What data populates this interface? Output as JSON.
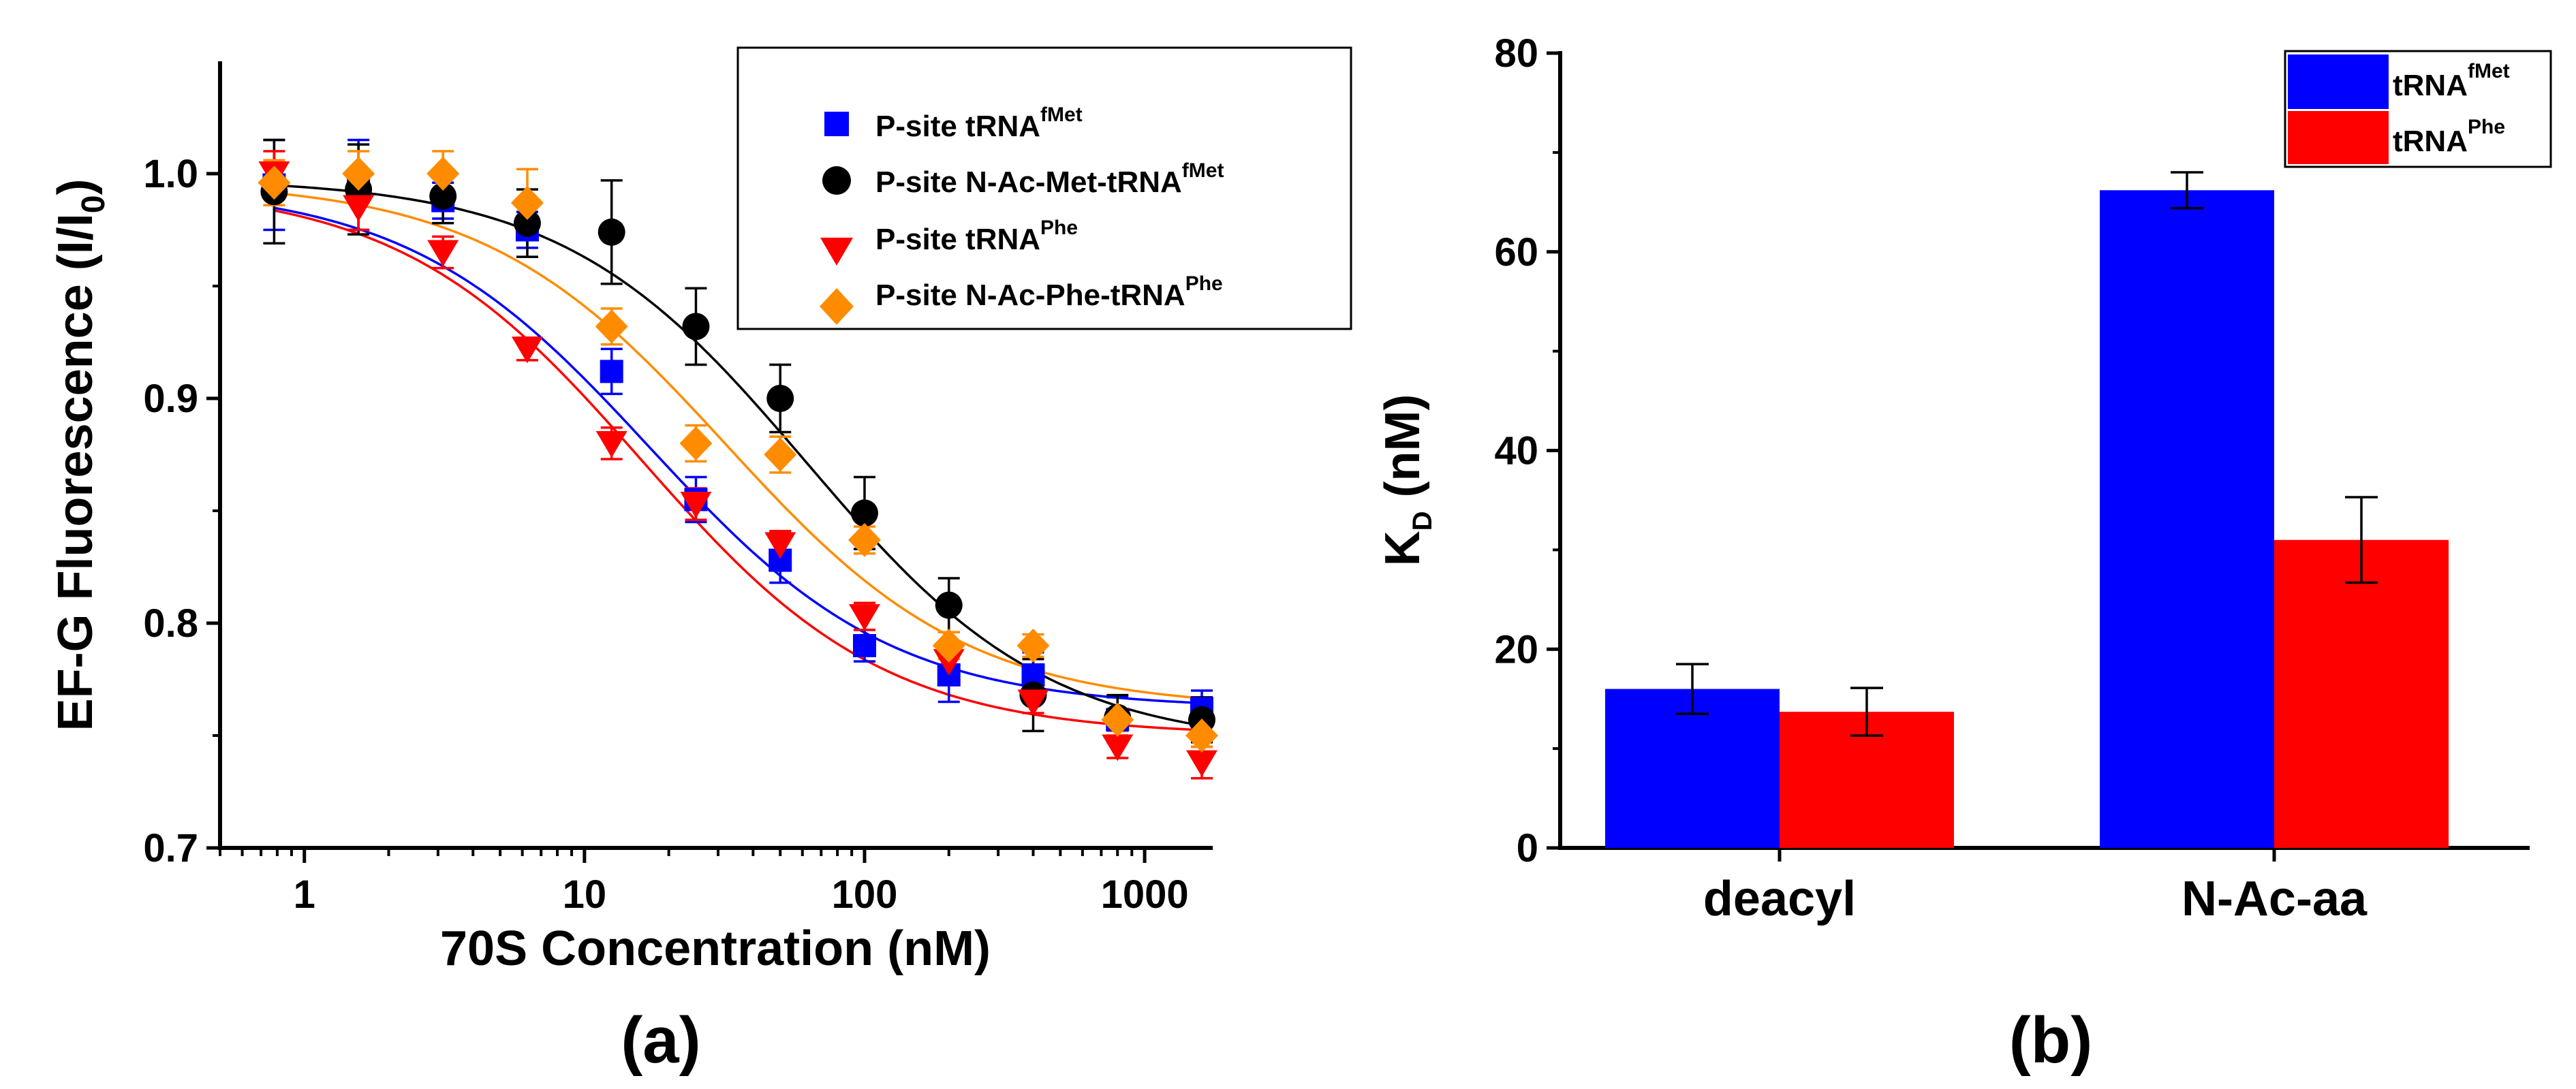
{
  "panel_a_label": "(a)",
  "panel_b_label": "(b)",
  "chart_data": [
    {
      "id": "a",
      "type": "scatter",
      "xscale": "log",
      "xlim": [
        0.5,
        1750
      ],
      "ylim": [
        0.7,
        1.05
      ],
      "xlabel": "70S Concentration (nM)",
      "ylabel_main": "EF-G Fluorescence (I/I",
      "ylabel_sub": "0",
      "ylabel_close": ")",
      "xtick_values": [
        1,
        10,
        100,
        1000
      ],
      "xtick_labels": [
        "1",
        "10",
        "100",
        "1000"
      ],
      "ytick_values": [
        0.7,
        0.8,
        0.9,
        1.0
      ],
      "ytick_labels": [
        "0.7",
        "0.8",
        "0.9",
        "1.0"
      ],
      "legend_position": "top-right",
      "series": [
        {
          "name_base": "P-site tRNA",
          "name_sup": "fMet",
          "marker": "square",
          "color": "#0000ff",
          "x": [
            0.78,
            1.56,
            3.125,
            6.25,
            12.5,
            25,
            50,
            100,
            200,
            400,
            800,
            1600
          ],
          "y": [
            0.995,
            0.995,
            0.988,
            0.975,
            0.912,
            0.855,
            0.828,
            0.79,
            0.777,
            0.777,
            0.757,
            0.762
          ],
          "err": [
            0.02,
            0.02,
            0.008,
            0.008,
            0.01,
            0.01,
            0.01,
            0.007,
            0.012,
            0.01,
            0.01,
            0.008
          ],
          "fit": {
            "top": 0.995,
            "bottom": 0.762,
            "ec50": 17,
            "hill": 1.0
          }
        },
        {
          "name_base": "P-site N-Ac-Met-tRNA",
          "name_sup": "fMet",
          "marker": "circle",
          "color": "#000000",
          "x": [
            0.78,
            1.56,
            3.125,
            6.25,
            12.5,
            25,
            50,
            100,
            200,
            400,
            800,
            1600
          ],
          "y": [
            0.992,
            0.993,
            0.99,
            0.978,
            0.974,
            0.932,
            0.9,
            0.849,
            0.808,
            0.768,
            0.758,
            0.757
          ],
          "err": [
            0.023,
            0.02,
            0.012,
            0.015,
            0.023,
            0.017,
            0.015,
            0.016,
            0.012,
            0.016,
            0.01,
            0.01
          ],
          "fit": {
            "top": 0.998,
            "bottom": 0.745,
            "ec50": 62,
            "hill": 1.0
          }
        },
        {
          "name_base": "P-site tRNA",
          "name_sup": "Phe",
          "marker": "triangle-down",
          "color": "#ff0000",
          "x": [
            0.78,
            1.56,
            3.125,
            6.25,
            12.5,
            25,
            50,
            100,
            200,
            400,
            800,
            1600
          ],
          "y": [
            1.0,
            0.985,
            0.965,
            0.922,
            0.88,
            0.853,
            0.835,
            0.803,
            0.783,
            0.765,
            0.745,
            0.738
          ],
          "err": [
            0.01,
            0.01,
            0.007,
            0.005,
            0.007,
            0.007,
            0.006,
            0.006,
            0.005,
            0.005,
            0.005,
            0.007
          ],
          "fit": {
            "top": 0.995,
            "bottom": 0.75,
            "ec50": 16,
            "hill": 1.0
          }
        },
        {
          "name_base": "P-site N-Ac-Phe-tRNA",
          "name_sup": "Phe",
          "marker": "diamond",
          "color": "#ff8c00",
          "x": [
            0.78,
            1.56,
            3.125,
            6.25,
            12.5,
            25,
            50,
            100,
            200,
            400,
            800,
            1600
          ],
          "y": [
            0.996,
            1.0,
            1.0,
            0.987,
            0.932,
            0.88,
            0.875,
            0.837,
            0.79,
            0.79,
            0.757,
            0.75
          ],
          "err": [
            0.01,
            0.01,
            0.01,
            0.015,
            0.008,
            0.008,
            0.008,
            0.006,
            0.006,
            0.005,
            0.005,
            0.005
          ],
          "fit": {
            "top": 0.997,
            "bottom": 0.762,
            "ec50": 32,
            "hill": 1.0
          }
        }
      ]
    },
    {
      "id": "b",
      "type": "bar",
      "categories": [
        "deacyl",
        "N-Ac-aa"
      ],
      "ylim": [
        0,
        80
      ],
      "ylabel_main": "K",
      "ylabel_sub": "D",
      "ylabel_rest": " (nM)",
      "ytick_values": [
        0,
        20,
        40,
        60,
        80
      ],
      "ytick_labels": [
        "0",
        "20",
        "40",
        "60",
        "80"
      ],
      "legend_position": "top-right",
      "series": [
        {
          "name_base": "tRNA",
          "name_sup": "fMet",
          "color": "#0000ff",
          "values": [
            16,
            66.2
          ],
          "err": [
            2.5,
            1.8
          ]
        },
        {
          "name_base": "tRNA",
          "name_sup": "Phe",
          "color": "#ff0000",
          "values": [
            13.7,
            31
          ],
          "err": [
            2.4,
            4.3
          ]
        }
      ]
    }
  ]
}
